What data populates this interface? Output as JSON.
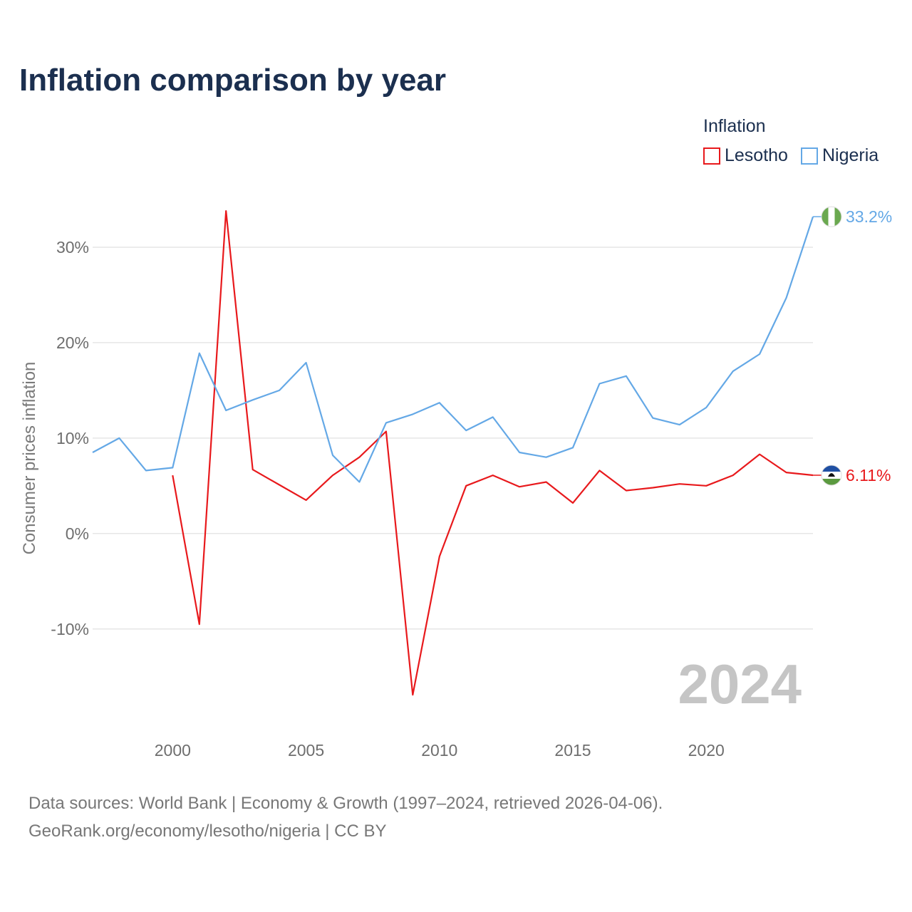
{
  "title": "Inflation comparison by year",
  "legend": {
    "title": "Inflation",
    "items": [
      {
        "name": "Lesotho",
        "color": "#e8191c"
      },
      {
        "name": "Nigeria",
        "color": "#64a8e6"
      }
    ]
  },
  "current_year": "2024",
  "source": {
    "line1": "Data sources: World Bank | Economy & Growth (1997–2024, retrieved 2026-04-06).",
    "line2": "GeoRank.org/economy/lesotho/nigeria | CC BY"
  },
  "chart_data": {
    "type": "line",
    "title": "Inflation comparison by year",
    "xlabel": "",
    "ylabel": "Consumer prices inflation",
    "xlim": [
      1997,
      2024
    ],
    "ylim": [
      -19.5,
      35
    ],
    "yticks": [
      30,
      20,
      10,
      0,
      -10
    ],
    "ytick_labels": [
      "30%",
      "20%",
      "10%",
      "0%",
      "-10%"
    ],
    "xticks": [
      2000,
      2005,
      2010,
      2015,
      2020
    ],
    "xtick_labels": [
      "2000",
      "2005",
      "2010",
      "2015",
      "2020"
    ],
    "grid": true,
    "legend_position": "top-right",
    "series": [
      {
        "name": "Lesotho",
        "color": "#e8191c",
        "end_label": "6.11%",
        "x": [
          2000,
          2001,
          2002,
          2003,
          2004,
          2005,
          2006,
          2007,
          2008,
          2009,
          2010,
          2011,
          2012,
          2013,
          2014,
          2015,
          2016,
          2017,
          2018,
          2019,
          2020,
          2021,
          2022,
          2023,
          2024
        ],
        "values": [
          6.1,
          -9.5,
          33.8,
          6.7,
          5.1,
          3.5,
          6.1,
          8.0,
          10.7,
          -16.9,
          -2.4,
          5.0,
          6.1,
          4.9,
          5.4,
          3.2,
          6.6,
          4.5,
          4.8,
          5.2,
          5.0,
          6.1,
          8.3,
          6.4,
          6.11
        ]
      },
      {
        "name": "Nigeria",
        "color": "#64a8e6",
        "end_label": "33.2%",
        "x": [
          1997,
          1998,
          1999,
          2000,
          2001,
          2002,
          2003,
          2004,
          2005,
          2006,
          2007,
          2008,
          2009,
          2010,
          2011,
          2012,
          2013,
          2014,
          2015,
          2016,
          2017,
          2018,
          2019,
          2020,
          2021,
          2022,
          2023,
          2024
        ],
        "values": [
          8.5,
          10.0,
          6.6,
          6.9,
          18.9,
          12.9,
          14.0,
          15.0,
          17.9,
          8.2,
          5.4,
          11.6,
          12.5,
          13.7,
          10.8,
          12.2,
          8.5,
          8.0,
          9.0,
          15.7,
          16.5,
          12.1,
          11.4,
          13.2,
          17.0,
          18.8,
          24.7,
          33.2
        ]
      }
    ]
  }
}
